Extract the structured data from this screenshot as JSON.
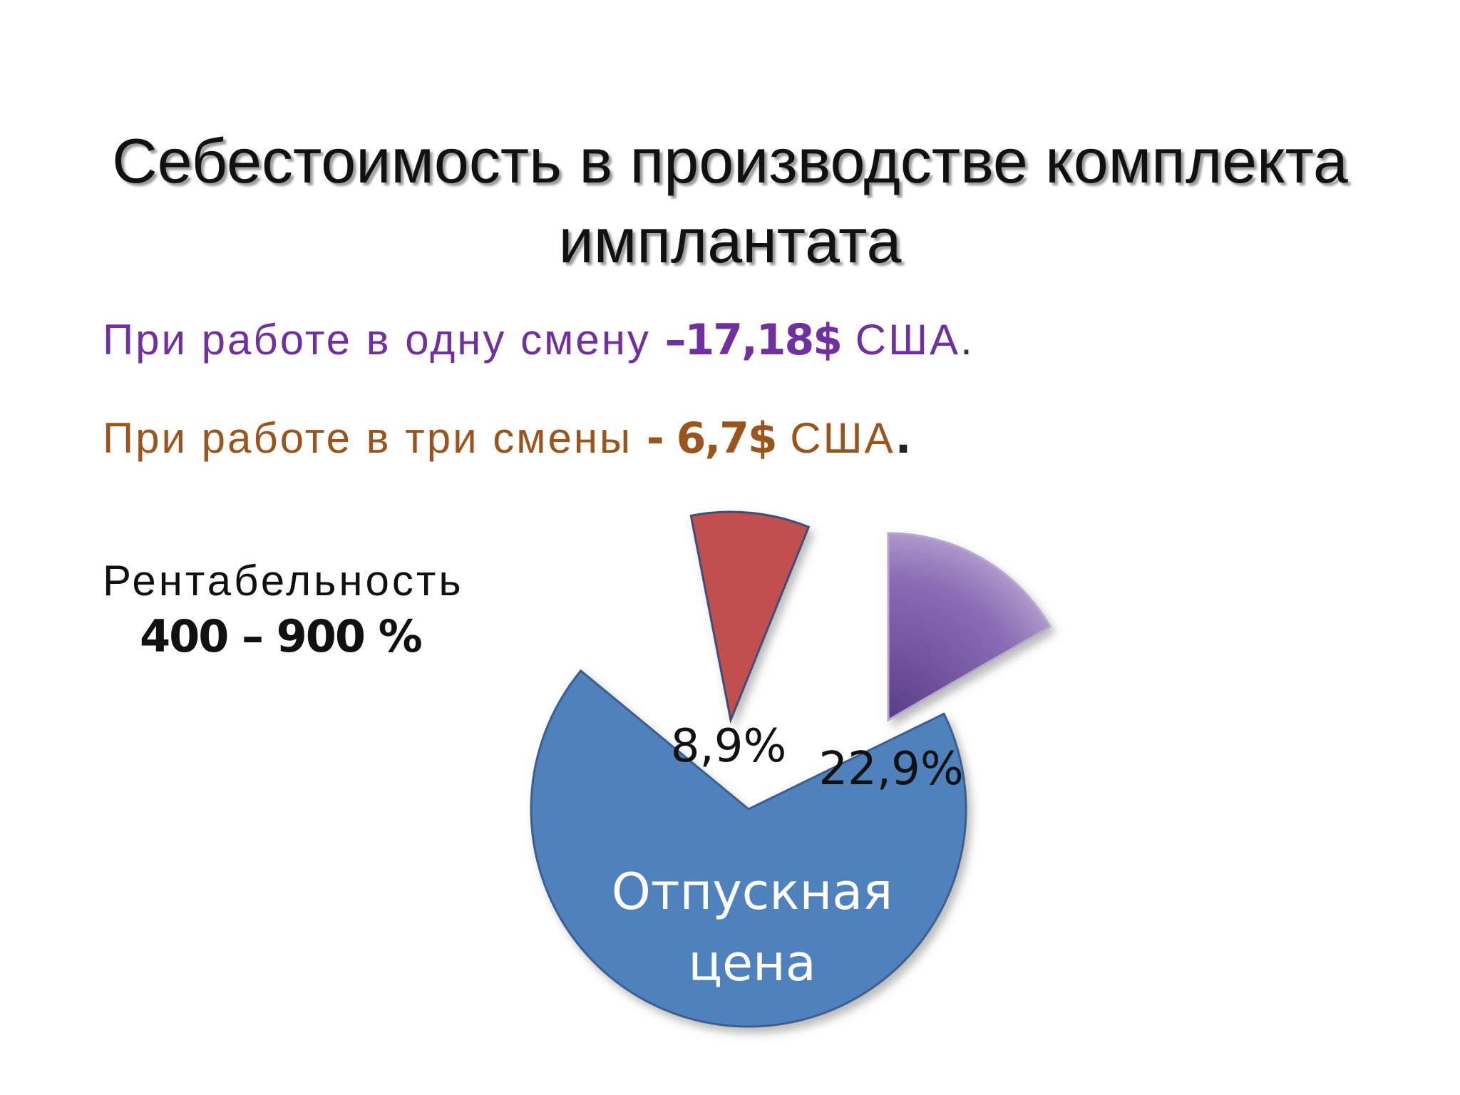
{
  "slide": {
    "title_line1": "Себестоимость в производстве комплекта",
    "title_line2": "имплантата",
    "one_shift": {
      "text": "При работе  в одну смену ",
      "value": "–17,18$",
      "currency": " США",
      "end": "."
    },
    "three_shifts": {
      "text": "При работе в три смены ",
      "value": "- 6,7$",
      "currency": " США",
      "end": "."
    },
    "profitability_label": "Рентабельность",
    "profitability_value": "400 – 900 %"
  },
  "chart_data": {
    "type": "pie",
    "slices": [
      {
        "label": "Отпускная цена",
        "value": 68.2,
        "color": "#4f81bd"
      },
      {
        "label": "8,9%",
        "value": 8.9,
        "color": "#c0504d"
      },
      {
        "label": "22,9%",
        "value": 22.9,
        "color": "#8064a2"
      }
    ],
    "main_label_line1": "Отпускная",
    "main_label_line2": "цена"
  }
}
